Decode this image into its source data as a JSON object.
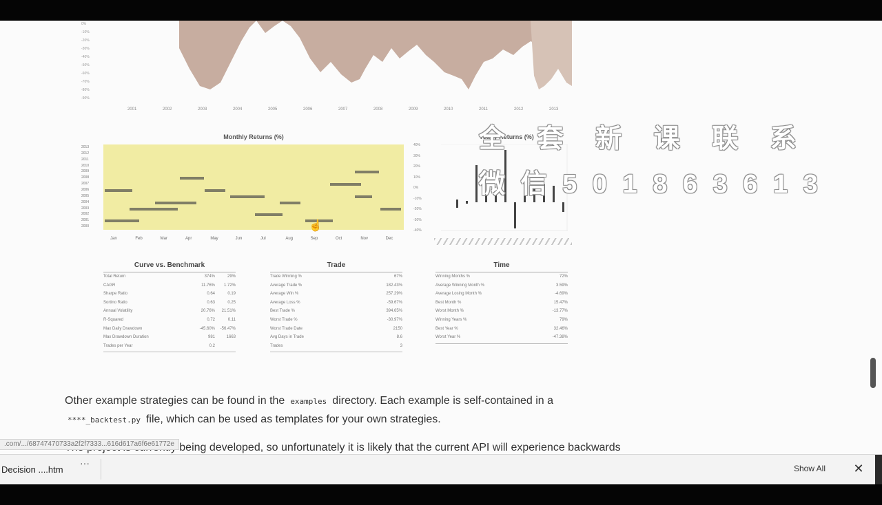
{
  "equity_chart": {
    "years": [
      "2001",
      "2002",
      "2003",
      "2004",
      "2005",
      "2006",
      "2007",
      "2008",
      "2009",
      "2010",
      "2011",
      "2012",
      "2013"
    ],
    "y_labels": [
      "0%",
      "-10%",
      "-20%",
      "-30%",
      "-40%",
      "-50%",
      "-60%",
      "-70%",
      "-80%",
      "-90%"
    ]
  },
  "monthly_returns": {
    "title": "Monthly Returns (%)",
    "months": [
      "Jan",
      "Feb",
      "Mar",
      "Apr",
      "May",
      "Jun",
      "Jul",
      "Aug",
      "Sep",
      "Oct",
      "Nov",
      "Dec"
    ],
    "years": [
      "2013",
      "2012",
      "2011",
      "2010",
      "2009",
      "2008",
      "2007",
      "2006",
      "2005",
      "2004",
      "2003",
      "2002",
      "2001",
      "2000"
    ]
  },
  "yearly_returns": {
    "title": "Yearly Returns (%)",
    "y_labels": [
      "40%",
      "30%",
      "20%",
      "10%",
      "0%",
      "-10%",
      "-20%",
      "-30%",
      "-40%"
    ]
  },
  "curve_vs_benchmark": {
    "title": "Curve vs. Benchmark",
    "rows": [
      {
        "label": "Total Return",
        "v1": "374%",
        "v2": "29%"
      },
      {
        "label": "CAGR",
        "v1": "11.76%",
        "v2": "1.72%"
      },
      {
        "label": "Sharpe Ratio",
        "v1": "0.64",
        "v2": "0.19"
      },
      {
        "label": "Sortino Ratio",
        "v1": "0.63",
        "v2": "0.25"
      },
      {
        "label": "Annual Volatility",
        "v1": "20.76%",
        "v2": "21.51%"
      },
      {
        "label": "R-Squared",
        "v1": "0.72",
        "v2": "0.11"
      },
      {
        "label": "Max Daily Drawdown",
        "v1": "-45.60%",
        "v2": "-56.47%"
      },
      {
        "label": "Max Drawdown Duration",
        "v1": "981",
        "v2": "1663"
      },
      {
        "label": "Trades per Year",
        "v1": "0.2",
        "v2": ""
      }
    ]
  },
  "trade": {
    "title": "Trade",
    "rows": [
      {
        "label": "Trade Winning %",
        "v1": "67%"
      },
      {
        "label": "Average Trade %",
        "v1": "182.43%"
      },
      {
        "label": "Average Win %",
        "v1": "257.29%"
      },
      {
        "label": "Average Loss %",
        "v1": "-59.67%"
      },
      {
        "label": "Best Trade %",
        "v1": "394.65%"
      },
      {
        "label": "Worst Trade %",
        "v1": "-30.97%"
      },
      {
        "label": "Worst Trade Date",
        "v1": "2150"
      },
      {
        "label": "Avg Days in Trade",
        "v1": "8.6"
      },
      {
        "label": "Trades",
        "v1": "3"
      }
    ]
  },
  "time": {
    "title": "Time",
    "rows": [
      {
        "label": "Winning Months %",
        "v1": "72%"
      },
      {
        "label": "Average Winning Month %",
        "v1": "3.59%"
      },
      {
        "label": "Average Losing Month %",
        "v1": "-4.69%"
      },
      {
        "label": "Best Month %",
        "v1": "15.47%"
      },
      {
        "label": "Worst Month %",
        "v1": "-13.77%"
      },
      {
        "label": "Winning Years %",
        "v1": "79%"
      },
      {
        "label": "Best Year %",
        "v1": "32.46%"
      },
      {
        "label": "Worst Year %",
        "v1": "-47.38%"
      }
    ]
  },
  "watermark": {
    "line1": "全 套 新 课 联 系",
    "line2": "微 信 5 0 1 8 6 3 6 1 3"
  },
  "paragraph": {
    "t1": "Other example strategies can be found in the",
    "code1": "examples",
    "t2": "directory. Each example is self-contained in a",
    "code2": "****_backtest.py",
    "t3": "file, which can be used as templates for your own strategies."
  },
  "paragraph2": "The project is currently being developed, so unfortunately it is likely that the current API will experience backwards",
  "status_url": ".com/.../68747470733a2f2f7333...616d617a6f6e61772e",
  "download_shelf": {
    "filename": "Decision ....htm",
    "more": "···",
    "show_all": "Show All",
    "close": "✕"
  }
}
